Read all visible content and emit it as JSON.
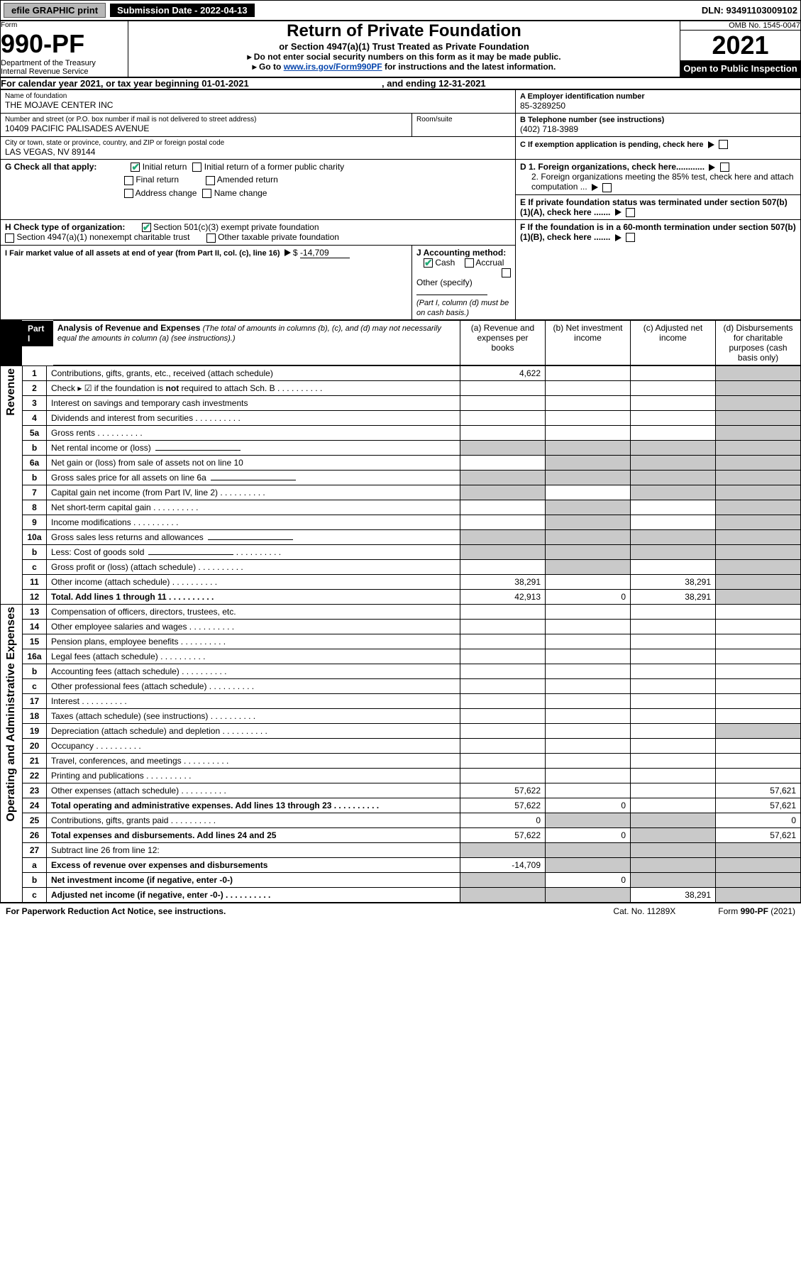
{
  "topbar": {
    "efile": "efile GRAPHIC print",
    "subdate_label": "Submission Date - 2022-04-13",
    "dln": "DLN: 93491103009102"
  },
  "header": {
    "form_word": "Form",
    "form_no": "990-PF",
    "dept": "Department of the Treasury",
    "irs": "Internal Revenue Service",
    "title": "Return of Private Foundation",
    "subtitle": "or Section 4947(a)(1) Trust Treated as Private Foundation",
    "instr1": "▸ Do not enter social security numbers on this form as it may be made public.",
    "instr2_pre": "▸ Go to ",
    "instr2_link": "www.irs.gov/Form990PF",
    "instr2_post": " for instructions and the latest information.",
    "omb": "OMB No. 1545-0047",
    "year": "2021",
    "openpub": "Open to Public Inspection"
  },
  "calrow": {
    "pre": "For calendar year 2021, or tax year beginning ",
    "begin": "01-01-2021",
    "mid": " , and ending ",
    "end": "12-31-2021"
  },
  "ident": {
    "name_label": "Name of foundation",
    "name": "THE MOJAVE CENTER INC",
    "addr_label": "Number and street (or P.O. box number if mail is not delivered to street address)",
    "addr": "10409 PACIFIC PALISADES AVENUE",
    "room_label": "Room/suite",
    "city_label": "City or town, state or province, country, and ZIP or foreign postal code",
    "city": "LAS VEGAS, NV  89144",
    "a_label": "A Employer identification number",
    "a_val": "85-3289250",
    "b_label": "B Telephone number (see instructions)",
    "b_val": "(402) 718-3989",
    "c_label": "C If exemption application is pending, check here",
    "d1": "D 1. Foreign organizations, check here............",
    "d2": "2. Foreign organizations meeting the 85% test, check here and attach computation ...",
    "e": "E  If private foundation status was terminated under section 507(b)(1)(A), check here .......",
    "f": "F  If the foundation is in a 60-month termination under section 507(b)(1)(B), check here .......",
    "g_label": "G Check all that apply:",
    "g_opts": [
      "Initial return",
      "Initial return of a former public charity",
      "Final return",
      "Amended return",
      "Address change",
      "Name change"
    ],
    "h_label": "H Check type of organization:",
    "h_opts": [
      "Section 501(c)(3) exempt private foundation",
      "Section 4947(a)(1) nonexempt charitable trust",
      "Other taxable private foundation"
    ],
    "i_label": "I Fair market value of all assets at end of year (from Part II, col. (c), line 16)",
    "i_val": "-14,709",
    "j_label": "J Accounting method:",
    "j_opts": [
      "Cash",
      "Accrual",
      "Other (specify)"
    ],
    "j_note": "(Part I, column (d) must be on cash basis.)"
  },
  "part1": {
    "tag": "Part I",
    "title": "Analysis of Revenue and Expenses",
    "title_note": " (The total of amounts in columns (b), (c), and (d) may not necessarily equal the amounts in column (a) (see instructions).)",
    "cols": {
      "a": "(a)   Revenue and expenses per books",
      "b": "(b)   Net investment income",
      "c": "(c)   Adjusted net income",
      "d": "(d)   Disbursements for charitable purposes (cash basis only)"
    },
    "side_rev": "Revenue",
    "side_exp": "Operating and Administrative Expenses"
  },
  "rows": [
    {
      "n": "1",
      "d": "Contributions, gifts, grants, etc., received (attach schedule)",
      "a": "4,622",
      "shade_d": true
    },
    {
      "n": "2",
      "d": "Check ▸ ☑ if the foundation is not required to attach Sch. B",
      "dots": true,
      "no_amt": true,
      "shade_d": true,
      "bold_not": true
    },
    {
      "n": "3",
      "d": "Interest on savings and temporary cash investments",
      "shade_d": true
    },
    {
      "n": "4",
      "d": "Dividends and interest from securities",
      "dots": true,
      "shade_d": true
    },
    {
      "n": "5a",
      "d": "Gross rents",
      "dots": true,
      "shade_d": true
    },
    {
      "n": "b",
      "d": "Net rental income or (loss)",
      "underline_after": true,
      "shade_all": true
    },
    {
      "n": "6a",
      "d": "Net gain or (loss) from sale of assets not on line 10",
      "shade_bcd": true
    },
    {
      "n": "b",
      "d": "Gross sales price for all assets on line 6a",
      "underline_after": true,
      "shade_all": true
    },
    {
      "n": "7",
      "d": "Capital gain net income (from Part IV, line 2)",
      "dots": true,
      "shade_acd": true
    },
    {
      "n": "8",
      "d": "Net short-term capital gain",
      "dots": true,
      "shade_abd": true
    },
    {
      "n": "9",
      "d": "Income modifications",
      "dots": true,
      "shade_abd": true
    },
    {
      "n": "10a",
      "d": "Gross sales less returns and allowances",
      "underline_after": true,
      "shade_all": true
    },
    {
      "n": "b",
      "d": "Less: Cost of goods sold",
      "dots": true,
      "underline_after": true,
      "shade_all": true
    },
    {
      "n": "c",
      "d": "Gross profit or (loss) (attach schedule)",
      "dots": true,
      "shade_bd": true
    },
    {
      "n": "11",
      "d": "Other income (attach schedule)",
      "dots": true,
      "a": "38,291",
      "c": "38,291",
      "shade_d": true
    },
    {
      "n": "12",
      "d": "Total. Add lines 1 through 11",
      "dots": true,
      "bold": true,
      "a": "42,913",
      "b": "0",
      "c": "38,291",
      "shade_d": true
    },
    {
      "n": "13",
      "d": "Compensation of officers, directors, trustees, etc."
    },
    {
      "n": "14",
      "d": "Other employee salaries and wages",
      "dots": true
    },
    {
      "n": "15",
      "d": "Pension plans, employee benefits",
      "dots": true
    },
    {
      "n": "16a",
      "d": "Legal fees (attach schedule)",
      "dots": true
    },
    {
      "n": "b",
      "d": "Accounting fees (attach schedule)",
      "dots": true
    },
    {
      "n": "c",
      "d": "Other professional fees (attach schedule)",
      "dots": true
    },
    {
      "n": "17",
      "d": "Interest",
      "dots": true
    },
    {
      "n": "18",
      "d": "Taxes (attach schedule) (see instructions)",
      "dots": true
    },
    {
      "n": "19",
      "d": "Depreciation (attach schedule) and depletion",
      "dots": true,
      "shade_d": true
    },
    {
      "n": "20",
      "d": "Occupancy",
      "dots": true
    },
    {
      "n": "21",
      "d": "Travel, conferences, and meetings",
      "dots": true
    },
    {
      "n": "22",
      "d": "Printing and publications",
      "dots": true
    },
    {
      "n": "23",
      "d": "Other expenses (attach schedule)",
      "dots": true,
      "a": "57,622",
      "d_amt": "57,621"
    },
    {
      "n": "24",
      "d": "Total operating and administrative expenses. Add lines 13 through 23",
      "dots": true,
      "bold": true,
      "a": "57,622",
      "b": "0",
      "d_amt": "57,621"
    },
    {
      "n": "25",
      "d": "Contributions, gifts, grants paid",
      "dots": true,
      "a": "0",
      "shade_bc": true,
      "d_amt": "0"
    },
    {
      "n": "26",
      "d": "Total expenses and disbursements. Add lines 24 and 25",
      "bold": true,
      "a": "57,622",
      "b": "0",
      "shade_c": true,
      "d_amt": "57,621"
    },
    {
      "n": "27",
      "d": "Subtract line 26 from line 12:",
      "shade_all": true
    },
    {
      "n": "a",
      "d": "Excess of revenue over expenses and disbursements",
      "bold": true,
      "a": "-14,709",
      "shade_bcd": true
    },
    {
      "n": "b",
      "d": "Net investment income (if negative, enter -0-)",
      "bold": true,
      "shade_a": true,
      "b": "0",
      "shade_cd": true
    },
    {
      "n": "c",
      "d": "Adjusted net income (if negative, enter -0-)",
      "dots": true,
      "bold": true,
      "shade_ab": true,
      "c": "38,291",
      "shade_d": true
    }
  ],
  "footer": {
    "l": "For Paperwork Reduction Act Notice, see instructions.",
    "m": "Cat. No. 11289X",
    "r": "Form 990-PF (2021)"
  },
  "colors": {
    "shade": "#c9c9c9",
    "link": "#0645ad",
    "check": "#2a7a2a"
  }
}
